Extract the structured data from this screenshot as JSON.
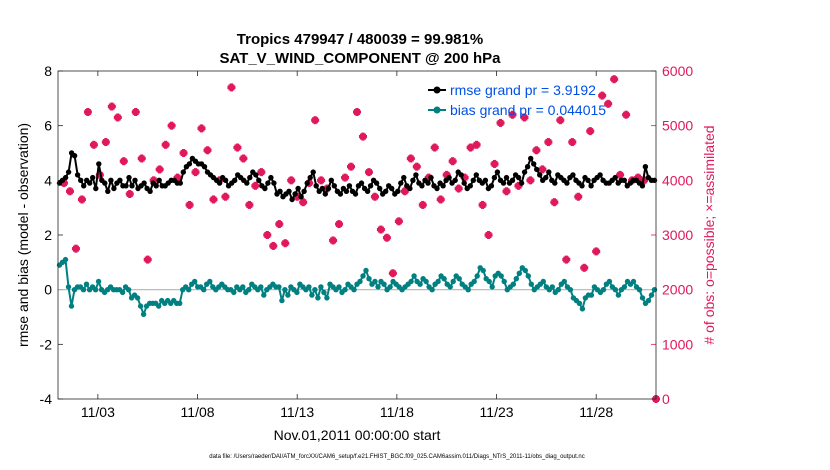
{
  "chart_data": {
    "type": "line",
    "title": "Tropics 479947 / 480039 = 99.981%",
    "subtitle": "SAT_V_WIND_COMPONENT @ 200 hPa",
    "xlabel": "Nov.01,2011 00:00:00 start",
    "ylabel_left": "rmse and bias (model - observation)",
    "ylabel_right": "# of obs: o=possible; ×=assimilated",
    "footer": "data file: /Users/raeder/DAI/ATM_forcXX/CAM6_setup/f.e21.FHIST_BGC.f09_025.CAM6assim.011/Diags_NTrS_2011-11/obs_diag_output.nc",
    "x_range": [
      1.0,
      31.0
    ],
    "x_ticks": [
      3,
      8,
      13,
      18,
      23,
      28
    ],
    "x_tick_labels": [
      "11/03",
      "11/08",
      "11/13",
      "11/18",
      "11/23",
      "11/28"
    ],
    "ylim_left": [
      -4,
      8
    ],
    "y_ticks_left": [
      -4,
      -2,
      0,
      2,
      4,
      6,
      8
    ],
    "ylim_right": [
      0,
      6000
    ],
    "y_ticks_right": [
      0,
      1000,
      2000,
      3000,
      4000,
      5000,
      6000
    ],
    "grid": false,
    "legend_location": "top-right",
    "colors": {
      "rmse": "#000000",
      "bias": "#008080",
      "obs": "#e0195a",
      "zero_line": "#b4b4b4"
    },
    "series": [
      {
        "name": "rmse grand pr = 3.9192",
        "axis": "left",
        "values": [
          3.9,
          4.0,
          4.1,
          4.3,
          5.0,
          4.9,
          4.2,
          4.0,
          3.8,
          4.0,
          3.9,
          4.1,
          3.7,
          4.6,
          4.0,
          3.9,
          3.6,
          4.0,
          3.7,
          3.9,
          4.0,
          3.8,
          3.8,
          4.1,
          3.8,
          4.0,
          3.7,
          3.8,
          3.9,
          3.7,
          3.6,
          3.9,
          3.8,
          4.0,
          3.8,
          3.8,
          3.9,
          4.0,
          4.0,
          3.9,
          3.9,
          4.3,
          4.5,
          4.6,
          4.8,
          4.7,
          4.6,
          4.6,
          4.5,
          4.3,
          4.2,
          4.1,
          4.0,
          3.9,
          4.1,
          4.0,
          3.8,
          3.9,
          4.0,
          4.2,
          4.1,
          4.0,
          3.9,
          4.1,
          4.3,
          4.2,
          4.0,
          3.8,
          3.7,
          3.9,
          4.1,
          3.9,
          3.5,
          3.6,
          3.4,
          3.5,
          3.6,
          3.3,
          3.5,
          3.7,
          3.4,
          3.6,
          3.9,
          4.1,
          4.3,
          3.8,
          3.6,
          3.7,
          3.5,
          3.7,
          4.0,
          3.8,
          3.6,
          3.5,
          3.7,
          3.6,
          3.8,
          3.6,
          3.5,
          3.8,
          3.9,
          3.7,
          3.6,
          3.8,
          4.0,
          3.9,
          3.7,
          3.5,
          3.6,
          3.8,
          3.7,
          3.5,
          3.6,
          3.9,
          4.1,
          3.8,
          3.7,
          4.0,
          4.2,
          3.9,
          3.8,
          4.0,
          3.9,
          4.1,
          3.8,
          3.7,
          3.9,
          3.8,
          4.0,
          4.1,
          3.9,
          4.0,
          4.3,
          4.2,
          3.9,
          3.7,
          3.8,
          4.0,
          4.2,
          4.0,
          3.9,
          4.0,
          3.7,
          3.8,
          4.1,
          4.3,
          4.0,
          3.9,
          4.1,
          3.9,
          4.0,
          4.2,
          4.1,
          3.9,
          4.3,
          4.5,
          4.8,
          4.6,
          4.4,
          4.2,
          4.0,
          4.1,
          4.3,
          4.0,
          3.9,
          4.2,
          4.1,
          4.0,
          3.9,
          4.1,
          4.2,
          4.0,
          3.9,
          3.8,
          4.1,
          4.0,
          3.8,
          4.0,
          4.1,
          4.2,
          4.0,
          3.9,
          3.9,
          4.0,
          4.1,
          3.9,
          4.0,
          4.0,
          3.8,
          3.9,
          4.0,
          4.0,
          3.9,
          3.8,
          4.5,
          4.1,
          4.0,
          4.0
        ]
      },
      {
        "name": "bias grand pr = 0.044015",
        "axis": "left",
        "values": [
          0.9,
          1.0,
          1.1,
          0.1,
          -0.6,
          0.0,
          0.1,
          0.1,
          0.0,
          0.2,
          0.0,
          0.1,
          0.0,
          0.3,
          0.0,
          -0.1,
          0.0,
          0.1,
          0.0,
          0.0,
          0.0,
          -0.1,
          0.1,
          0.0,
          -0.3,
          -0.2,
          -0.3,
          -0.6,
          -0.9,
          -0.6,
          -0.5,
          -0.5,
          -0.5,
          -0.6,
          -0.4,
          -0.5,
          -0.4,
          -0.5,
          -0.4,
          -0.5,
          -0.5,
          0.0,
          0.1,
          0.0,
          0.2,
          0.3,
          0.1,
          0.1,
          0.0,
          0.2,
          0.3,
          0.1,
          0.0,
          0.1,
          0.2,
          0.1,
          0.0,
          0.0,
          -0.1,
          0.1,
          0.0,
          0.1,
          -0.1,
          0.0,
          0.2,
          0.1,
          0.0,
          0.1,
          -0.2,
          0.0,
          0.1,
          0.2,
          0.1,
          0.1,
          -0.4,
          0.0,
          -0.2,
          0.1,
          0.0,
          -0.1,
          0.2,
          0.1,
          0.0,
          0.1,
          -0.2,
          0.0,
          -0.3,
          0.1,
          -0.1,
          -0.3,
          0.2,
          0.1,
          0.0,
          0.1,
          -0.1,
          0.0,
          0.2,
          0.1,
          0.0,
          0.2,
          0.3,
          0.5,
          0.7,
          0.4,
          0.2,
          0.3,
          0.1,
          0.3,
          0.2,
          0.0,
          0.1,
          0.3,
          0.2,
          0.1,
          0.0,
          0.1,
          0.2,
          0.3,
          0.5,
          0.3,
          0.2,
          0.4,
          0.3,
          0.1,
          0.0,
          0.2,
          0.3,
          0.5,
          0.4,
          0.2,
          0.1,
          0.3,
          0.5,
          0.4,
          0.2,
          0.1,
          0.0,
          0.2,
          0.3,
          0.5,
          0.8,
          0.7,
          0.4,
          0.3,
          0.1,
          0.5,
          0.6,
          0.5,
          0.3,
          0.0,
          0.1,
          0.2,
          0.4,
          0.6,
          0.8,
          0.7,
          0.5,
          0.2,
          0.0,
          0.1,
          0.2,
          0.3,
          0.1,
          0.0,
          0.1,
          -0.1,
          0.0,
          0.2,
          0.3,
          0.1,
          0.0,
          -0.3,
          -0.4,
          -0.5,
          -0.7,
          -0.3,
          -0.2,
          -0.2,
          0.1,
          0.0,
          -0.1,
          0.0,
          0.2,
          0.3,
          0.1,
          0.0,
          -0.2,
          0.0,
          0.1,
          0.3,
          0.2,
          0.3,
          0.1,
          0.0,
          -0.3,
          -0.5,
          -0.4,
          -0.2,
          0.0
        ]
      }
    ],
    "observations_assimilated": {
      "axis": "right",
      "points": [
        [
          1.3,
          3950
        ],
        [
          1.6,
          3800
        ],
        [
          1.9,
          2750
        ],
        [
          2.2,
          3650
        ],
        [
          2.5,
          5250
        ],
        [
          2.8,
          4650
        ],
        [
          3.1,
          4100
        ],
        [
          3.4,
          4700
        ],
        [
          3.7,
          5350
        ],
        [
          4.0,
          5150
        ],
        [
          4.3,
          4350
        ],
        [
          4.6,
          3750
        ],
        [
          4.9,
          5250
        ],
        [
          5.2,
          4400
        ],
        [
          5.5,
          2550
        ],
        [
          5.8,
          4000
        ],
        [
          6.1,
          4200
        ],
        [
          6.4,
          4650
        ],
        [
          6.7,
          5000
        ],
        [
          7.0,
          4050
        ],
        [
          7.3,
          4500
        ],
        [
          7.6,
          3550
        ],
        [
          7.9,
          4150
        ],
        [
          8.2,
          4950
        ],
        [
          8.5,
          4550
        ],
        [
          8.8,
          3650
        ],
        [
          9.1,
          4000
        ],
        [
          9.4,
          3700
        ],
        [
          9.7,
          5700
        ],
        [
          10.0,
          4600
        ],
        [
          10.3,
          4400
        ],
        [
          10.6,
          3550
        ],
        [
          10.9,
          3900
        ],
        [
          11.2,
          4150
        ],
        [
          11.5,
          3000
        ],
        [
          11.8,
          2800
        ],
        [
          12.1,
          3200
        ],
        [
          12.4,
          2850
        ],
        [
          12.7,
          4000
        ],
        [
          13.0,
          3700
        ],
        [
          13.3,
          3600
        ],
        [
          13.6,
          3950
        ],
        [
          13.9,
          5100
        ],
        [
          14.2,
          4000
        ],
        [
          14.5,
          3850
        ],
        [
          14.8,
          2900
        ],
        [
          15.1,
          3200
        ],
        [
          15.4,
          4050
        ],
        [
          15.7,
          4250
        ],
        [
          16.0,
          5250
        ],
        [
          16.3,
          4800
        ],
        [
          16.6,
          4150
        ],
        [
          16.9,
          3700
        ],
        [
          17.2,
          3100
        ],
        [
          17.5,
          2950
        ],
        [
          17.8,
          2300
        ],
        [
          18.1,
          3250
        ],
        [
          18.4,
          3800
        ],
        [
          18.7,
          4400
        ],
        [
          19.0,
          4250
        ],
        [
          19.3,
          3550
        ],
        [
          19.6,
          4050
        ],
        [
          19.9,
          4600
        ],
        [
          20.2,
          3650
        ],
        [
          20.5,
          4100
        ],
        [
          20.8,
          4350
        ],
        [
          21.1,
          3850
        ],
        [
          21.4,
          4050
        ],
        [
          21.7,
          4600
        ],
        [
          22.0,
          4650
        ],
        [
          22.3,
          3550
        ],
        [
          22.6,
          3000
        ],
        [
          22.9,
          4300
        ],
        [
          23.2,
          5050
        ],
        [
          23.5,
          3800
        ],
        [
          23.8,
          5200
        ],
        [
          24.1,
          3900
        ],
        [
          24.4,
          5150
        ],
        [
          24.7,
          4000
        ],
        [
          25.0,
          4550
        ],
        [
          25.3,
          4200
        ],
        [
          25.6,
          4700
        ],
        [
          25.9,
          3600
        ],
        [
          26.2,
          5100
        ],
        [
          26.5,
          2550
        ],
        [
          26.8,
          4700
        ],
        [
          27.1,
          3700
        ],
        [
          27.4,
          2400
        ],
        [
          27.7,
          4900
        ],
        [
          28.0,
          2700
        ],
        [
          28.3,
          5550
        ],
        [
          28.6,
          5400
        ],
        [
          28.9,
          5850
        ],
        [
          29.2,
          4100
        ],
        [
          29.5,
          5200
        ],
        [
          29.8,
          4000
        ],
        [
          30.1,
          4050
        ],
        [
          30.4,
          4000
        ]
      ]
    },
    "observations_possible_only": {
      "axis": "right",
      "points": [
        [
          31.0,
          0
        ]
      ]
    }
  }
}
